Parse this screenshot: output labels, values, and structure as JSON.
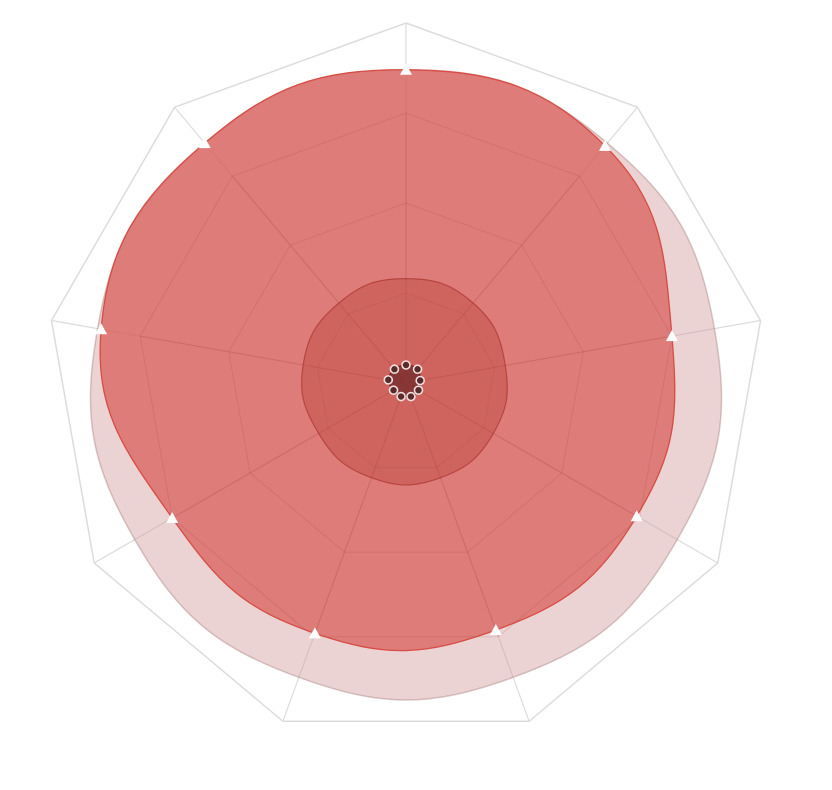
{
  "chart_data": {
    "type": "radar",
    "title": "",
    "axes": [
      "",
      "",
      "",
      "",
      "",
      "",
      "",
      "",
      ""
    ],
    "max_value": 100,
    "grid_levels": [
      25,
      50,
      75,
      100
    ],
    "grid": true,
    "legend": "none",
    "series": [
      {
        "marker": "none",
        "color": "#e8c8c8",
        "values": [
          87,
          87,
          87,
          87,
          87,
          87,
          87,
          87,
          87
        ]
      },
      {
        "marker": "triangle",
        "color": "#dc7872",
        "values": [
          87,
          86,
          75,
          74,
          73,
          74,
          75,
          86,
          87
        ]
      },
      {
        "marker": "none",
        "color": "#c85a55",
        "values": [
          29,
          29,
          28,
          28,
          28,
          28,
          28,
          29,
          29
        ]
      },
      {
        "marker": "circle",
        "color": "#7a3a3a",
        "values": [
          5,
          5,
          4,
          4,
          4,
          4,
          4,
          5,
          5
        ]
      }
    ]
  }
}
